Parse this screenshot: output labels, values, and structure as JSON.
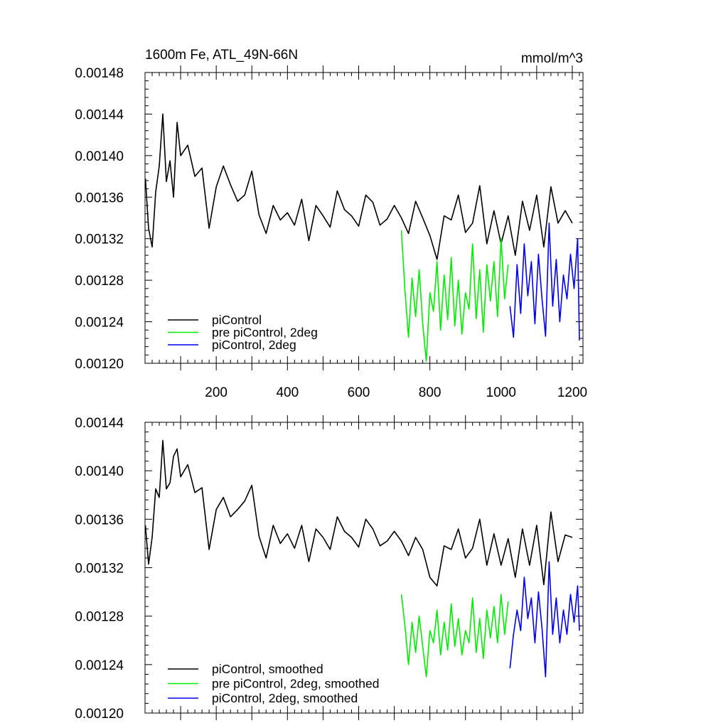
{
  "chart_data": [
    {
      "type": "line",
      "title": "1600m Fe, ATL_49N-66N",
      "units_label": "mmol/m^3",
      "xlim": [
        0,
        1230
      ],
      "ylim": [
        0.0012,
        0.00148
      ],
      "xticks": [
        200,
        400,
        600,
        800,
        1000,
        1200
      ],
      "xtick_labels": [
        "200",
        "400",
        "600",
        "800",
        "1000",
        "1200"
      ],
      "yticks": [
        0.0012,
        0.00124,
        0.00128,
        0.00132,
        0.00136,
        0.0014,
        0.00144,
        0.00148
      ],
      "ytick_labels": [
        "0.00120",
        "0.00124",
        "0.00128",
        "0.00132",
        "0.00136",
        "0.00140",
        "0.00144",
        "0.00148"
      ],
      "legend_position": "bottom-left",
      "series": [
        {
          "name": "piControl",
          "color": "#000000",
          "x": [
            1,
            10,
            20,
            30,
            40,
            50,
            60,
            70,
            80,
            90,
            100,
            120,
            140,
            160,
            180,
            200,
            220,
            240,
            260,
            280,
            300,
            320,
            340,
            360,
            380,
            400,
            420,
            440,
            460,
            480,
            500,
            520,
            540,
            560,
            580,
            600,
            620,
            640,
            660,
            680,
            700,
            720,
            740,
            760,
            780,
            800,
            820,
            840,
            860,
            880,
            900,
            920,
            940,
            960,
            980,
            1000,
            1020,
            1040,
            1060,
            1080,
            1100,
            1120,
            1140,
            1160,
            1180,
            1200
          ],
          "y": [
            0.001378,
            0.00133,
            0.001312,
            0.001365,
            0.00139,
            0.00144,
            0.001375,
            0.001395,
            0.00136,
            0.001432,
            0.0014,
            0.00141,
            0.00138,
            0.001388,
            0.00133,
            0.00137,
            0.00139,
            0.001372,
            0.001356,
            0.001362,
            0.001385,
            0.001343,
            0.001325,
            0.001352,
            0.001338,
            0.001345,
            0.001333,
            0.001358,
            0.001318,
            0.001352,
            0.001342,
            0.001331,
            0.001366,
            0.001348,
            0.001342,
            0.001332,
            0.001362,
            0.001355,
            0.001333,
            0.001339,
            0.001352,
            0.00134,
            0.001325,
            0.001356,
            0.00134,
            0.001323,
            0.0013,
            0.001342,
            0.001338,
            0.001362,
            0.001326,
            0.001335,
            0.001371,
            0.001315,
            0.001347,
            0.001315,
            0.001342,
            0.001304,
            0.001356,
            0.001328,
            0.001362,
            0.001312,
            0.00137,
            0.001335,
            0.001347,
            0.001335
          ]
        },
        {
          "name": "pre piControl, 2deg",
          "color": "#00ee00",
          "x": [
            720,
            730,
            740,
            750,
            760,
            770,
            780,
            790,
            800,
            810,
            820,
            830,
            840,
            850,
            860,
            870,
            880,
            890,
            900,
            910,
            920,
            930,
            940,
            950,
            960,
            970,
            980,
            990,
            1000,
            1010,
            1020
          ],
          "y": [
            0.001328,
            0.00127,
            0.001225,
            0.001282,
            0.001245,
            0.00129,
            0.001238,
            0.001202,
            0.001268,
            0.00125,
            0.001298,
            0.001232,
            0.001285,
            0.001242,
            0.001302,
            0.001236,
            0.00128,
            0.001228,
            0.001268,
            0.001252,
            0.001315,
            0.001243,
            0.00129,
            0.00123,
            0.001295,
            0.00126,
            0.001298,
            0.001245,
            0.00132,
            0.001262,
            0.001295
          ]
        },
        {
          "name": "piControl, 2deg",
          "color": "#0000ee",
          "x": [
            1025,
            1035,
            1045,
            1055,
            1065,
            1075,
            1085,
            1095,
            1105,
            1115,
            1125,
            1135,
            1145,
            1155,
            1165,
            1175,
            1185,
            1195,
            1205,
            1215,
            1220
          ],
          "y": [
            0.001255,
            0.001225,
            0.001295,
            0.001248,
            0.001315,
            0.001265,
            0.001298,
            0.001238,
            0.001305,
            0.001262,
            0.001226,
            0.001335,
            0.001255,
            0.0013,
            0.00124,
            0.001285,
            0.001262,
            0.001305,
            0.001272,
            0.00132,
            0.001222
          ]
        }
      ]
    },
    {
      "type": "line",
      "xlim": [
        0,
        1230
      ],
      "ylim": [
        0.0012,
        0.00144
      ],
      "yticks": [
        0.0012,
        0.00124,
        0.00128,
        0.00132,
        0.00136,
        0.0014,
        0.00144
      ],
      "ytick_labels": [
        "0.00120",
        "0.00124",
        "0.00128",
        "0.00132",
        "0.00136",
        "0.00140",
        "0.00144"
      ],
      "legend_position": "bottom-left",
      "series": [
        {
          "name": "piControl, smoothed",
          "color": "#000000",
          "x": [
            1,
            10,
            20,
            30,
            40,
            50,
            60,
            70,
            80,
            90,
            100,
            120,
            140,
            160,
            180,
            200,
            220,
            240,
            260,
            280,
            300,
            320,
            340,
            360,
            380,
            400,
            420,
            440,
            460,
            480,
            500,
            520,
            540,
            560,
            580,
            600,
            620,
            640,
            660,
            680,
            700,
            720,
            740,
            760,
            780,
            800,
            820,
            840,
            860,
            880,
            900,
            920,
            940,
            960,
            980,
            1000,
            1020,
            1040,
            1060,
            1080,
            1100,
            1120,
            1140,
            1160,
            1180,
            1200
          ],
          "y": [
            0.001355,
            0.001323,
            0.001345,
            0.001385,
            0.001378,
            0.001425,
            0.001385,
            0.00139,
            0.001412,
            0.001418,
            0.001395,
            0.001405,
            0.001382,
            0.001386,
            0.001335,
            0.001368,
            0.001378,
            0.001362,
            0.001368,
            0.001375,
            0.001388,
            0.001346,
            0.001328,
            0.001355,
            0.00134,
            0.001348,
            0.001336,
            0.001355,
            0.001325,
            0.001352,
            0.001345,
            0.001335,
            0.001362,
            0.00135,
            0.001345,
            0.001337,
            0.00136,
            0.001352,
            0.001338,
            0.001342,
            0.00135,
            0.001342,
            0.00133,
            0.001345,
            0.001335,
            0.001312,
            0.001305,
            0.001338,
            0.001335,
            0.001352,
            0.001328,
            0.001336,
            0.00136,
            0.001322,
            0.001348,
            0.001322,
            0.001344,
            0.001312,
            0.001352,
            0.001322,
            0.001355,
            0.001306,
            0.001366,
            0.001325,
            0.001347,
            0.001345
          ]
        },
        {
          "name": "pre piControl, 2deg, smoothed",
          "color": "#00ee00",
          "x": [
            720,
            730,
            740,
            750,
            760,
            770,
            780,
            790,
            800,
            810,
            820,
            830,
            840,
            850,
            860,
            870,
            880,
            890,
            900,
            910,
            920,
            930,
            940,
            950,
            960,
            970,
            980,
            990,
            1000,
            1010,
            1020
          ],
          "y": [
            0.001298,
            0.001272,
            0.00124,
            0.001275,
            0.00125,
            0.00128,
            0.001255,
            0.00123,
            0.001268,
            0.001258,
            0.001285,
            0.001248,
            0.001275,
            0.001252,
            0.00129,
            0.001255,
            0.001278,
            0.001248,
            0.001268,
            0.001258,
            0.001295,
            0.00125,
            0.001278,
            0.001245,
            0.001285,
            0.001262,
            0.001288,
            0.001258,
            0.001298,
            0.001265,
            0.001292
          ]
        },
        {
          "name": "piControl, 2deg, smoothed",
          "color": "#0000ee",
          "x": [
            1025,
            1035,
            1045,
            1055,
            1065,
            1075,
            1085,
            1095,
            1105,
            1115,
            1125,
            1135,
            1145,
            1155,
            1165,
            1175,
            1185,
            1195,
            1205,
            1215,
            1220
          ],
          "y": [
            0.001237,
            0.001265,
            0.001285,
            0.001268,
            0.001312,
            0.001278,
            0.001295,
            0.001258,
            0.0013,
            0.00127,
            0.00123,
            0.001325,
            0.001265,
            0.001295,
            0.001258,
            0.001285,
            0.001265,
            0.001298,
            0.001275,
            0.001305,
            0.001268
          ]
        }
      ]
    }
  ]
}
